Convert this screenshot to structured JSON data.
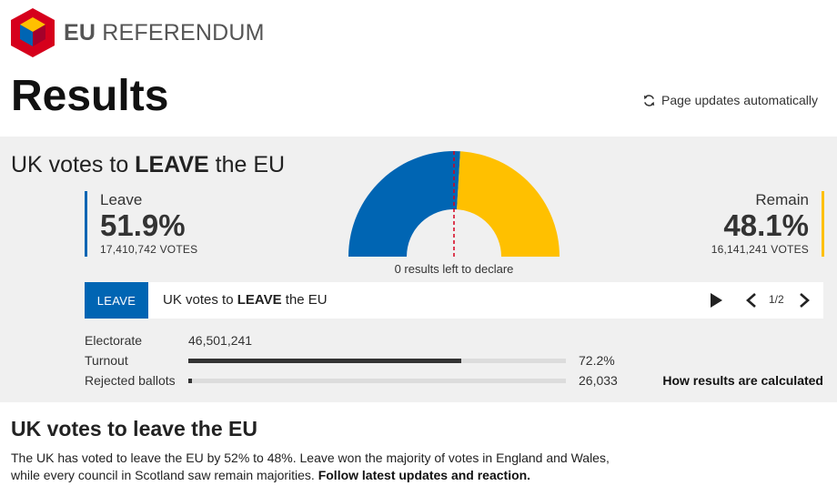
{
  "brand": {
    "bold": "EU",
    "rest": " REFERENDUM"
  },
  "page": {
    "title": "Results",
    "auto_update": "Page updates automatically"
  },
  "headline": {
    "prefix": "UK votes to ",
    "emph": "LEAVE",
    "suffix": " the EU"
  },
  "leave": {
    "name": "Leave",
    "pct": "51.9%",
    "votes": "17,410,742 VOTES",
    "color": "#0065b3"
  },
  "remain": {
    "name": "Remain",
    "pct": "48.1%",
    "votes": "16,141,241 VOTES",
    "color": "#ffc000"
  },
  "chart_data": {
    "type": "pie",
    "categories": [
      "Leave",
      "Remain"
    ],
    "values": [
      51.9,
      48.1
    ],
    "colors": [
      "#0065b3",
      "#ffc000"
    ],
    "annotation": "0 results left to declare"
  },
  "carousel": {
    "tag": "LEAVE",
    "prefix": "UK votes to ",
    "emph": "LEAVE",
    "suffix": " the EU",
    "page": "1/2"
  },
  "stats": {
    "electorate_label": "Electorate",
    "electorate_value": "46,501,241",
    "turnout_label": "Turnout",
    "turnout_value": "72.2%",
    "turnout_fraction": 0.722,
    "rejected_label": "Rejected ballots",
    "rejected_value": "26,033",
    "rejected_fraction": 0.01,
    "how_link": "How results are calculated"
  },
  "story": {
    "heading": "UK votes to leave the EU",
    "text": "The UK has voted to leave the EU by 52% to 48%. Leave won the majority of votes in England and Wales, while every council in Scotland saw remain majorities. ",
    "link": "Follow latest updates and reaction."
  }
}
